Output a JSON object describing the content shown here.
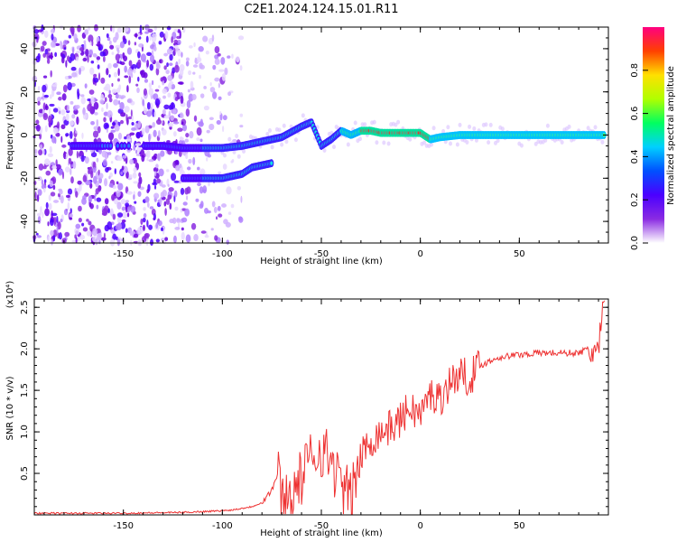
{
  "title": "C2E1.2024.124.15.01.R11",
  "colors": {
    "snr_line": "#ee3333"
  },
  "chart_data": [
    {
      "type": "heatmap",
      "xlabel": "Height of straight line (km)",
      "ylabel": "Frequency (Hz)",
      "xlim": [
        -195,
        95
      ],
      "ylim": [
        -50,
        50
      ],
      "xticks": [
        -150,
        -100,
        -50,
        0,
        50
      ],
      "yticks": [
        -40,
        -20,
        0,
        20,
        40
      ],
      "colorbar": {
        "label": "Normalized spectral amplitude",
        "range": [
          0,
          1
        ],
        "ticks": [
          0.0,
          0.2,
          0.4,
          0.6,
          0.8
        ],
        "colormap": [
          "#ffffff",
          "#8a2be2",
          "#4b00ff",
          "#0050ff",
          "#00d0ff",
          "#00ff60",
          "#b0ff00",
          "#ffe000",
          "#ff4000",
          "#ff0080"
        ]
      },
      "trace_main": {
        "x": [
          -173,
          -150,
          -130,
          -120,
          -110,
          -100,
          -90,
          -80,
          -70,
          -60,
          -55,
          -50,
          -45,
          -40,
          -35,
          -30,
          -25,
          -20,
          -10,
          0,
          5,
          10,
          20,
          40,
          60,
          80,
          93
        ],
        "y": [
          -5,
          -5,
          -5,
          -6,
          -6,
          -6,
          -5,
          -3,
          -1,
          4,
          6,
          -5,
          -2,
          2,
          0,
          2,
          2,
          1,
          1,
          1,
          -2,
          -1,
          0,
          0,
          0,
          0,
          0
        ]
      },
      "trace_lower": {
        "x": [
          -120,
          -110,
          -100,
          -95,
          -90,
          -85,
          -80,
          -75
        ],
        "y": [
          -20,
          -20,
          -20,
          -19,
          -18,
          -15,
          -14,
          -13
        ]
      }
    },
    {
      "type": "line",
      "xlabel": "Height of straight line (km)",
      "ylabel": "SNR (10 * v/v)",
      "multiplier_label": "(x10⁴)",
      "xlim": [
        -195,
        95
      ],
      "ylim": [
        0,
        2.6
      ],
      "xticks": [
        -150,
        -100,
        -50,
        0,
        50
      ],
      "yticks": [
        0.5,
        1.0,
        1.5,
        2.0,
        2.5
      ],
      "series": [
        {
          "x": [
            -195,
            -150,
            -120,
            -100,
            -95,
            -90,
            -85,
            -80,
            -75,
            -72,
            -70,
            -65,
            -60,
            -55,
            -50,
            -45,
            -40,
            -35,
            -30,
            -25,
            -20,
            -15,
            -10,
            -5,
            0,
            5,
            10,
            15,
            20,
            25,
            30,
            40,
            50,
            60,
            70,
            80,
            85,
            90,
            93
          ],
          "y": [
            0.02,
            0.02,
            0.03,
            0.05,
            0.06,
            0.08,
            0.1,
            0.15,
            0.3,
            0.5,
            0.2,
            0.25,
            0.45,
            0.7,
            0.8,
            0.65,
            0.35,
            0.2,
            0.7,
            0.9,
            1.0,
            1.05,
            1.15,
            1.3,
            1.2,
            1.45,
            1.4,
            1.6,
            1.7,
            1.65,
            1.8,
            1.9,
            1.93,
            1.95,
            1.95,
            1.95,
            2.0,
            1.95,
            2.5
          ]
        }
      ]
    }
  ]
}
